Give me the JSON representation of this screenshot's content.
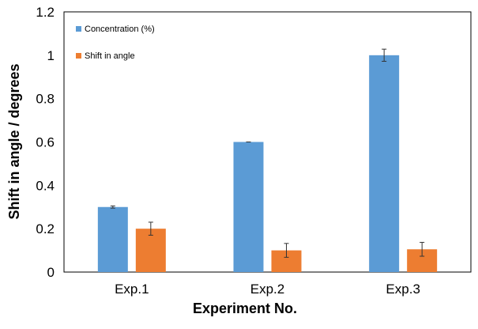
{
  "chart_data": {
    "type": "bar",
    "title": "",
    "xlabel": "Experiment No.",
    "ylabel": "Shift in angle / degrees",
    "categories": [
      "Exp.1",
      "Exp.2",
      "Exp.3"
    ],
    "ylim": [
      0,
      1.2
    ],
    "yticks": [
      "0",
      "0.2",
      "0.4",
      "0.6",
      "0.8",
      "1",
      "1.2"
    ],
    "grid": false,
    "legend_position": "top-left",
    "series": [
      {
        "name": "Concentration (%)",
        "color": "#5B9BD5",
        "values": [
          0.3,
          0.6,
          1.0
        ],
        "errors": [
          0.005,
          0.0,
          0.028
        ]
      },
      {
        "name": "Shift in angle",
        "color": "#ED7D31",
        "values": [
          0.2,
          0.1,
          0.105
        ],
        "errors": [
          0.03,
          0.032,
          0.032
        ]
      }
    ]
  }
}
